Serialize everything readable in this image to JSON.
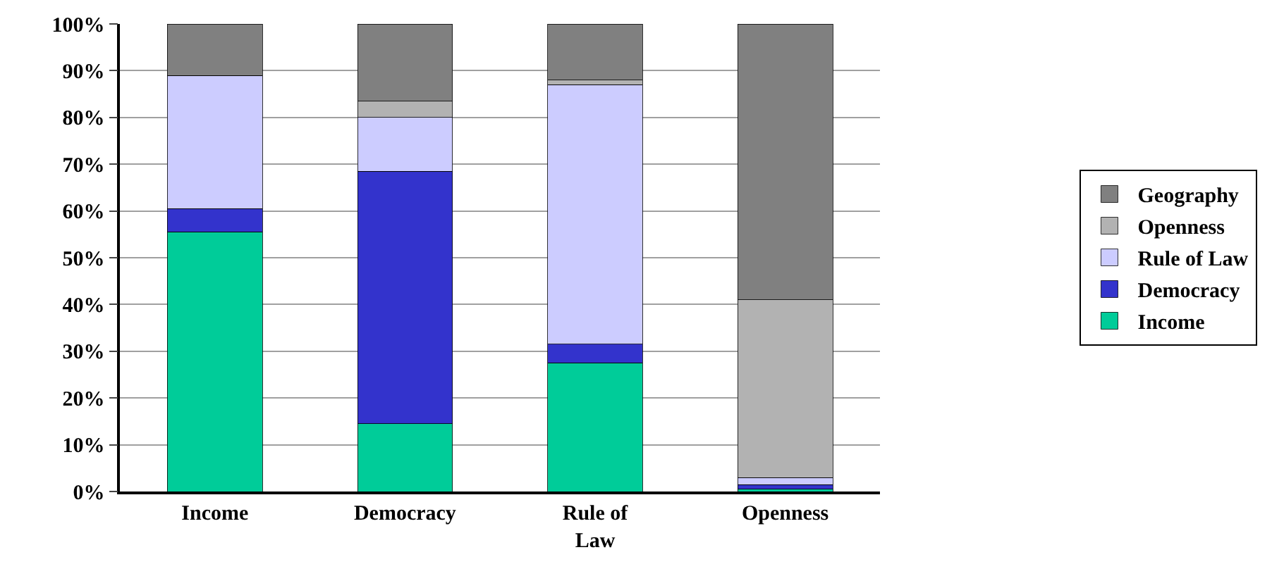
{
  "chart_data": {
    "type": "bar",
    "stacked": true,
    "categories": [
      "Income",
      "Democracy",
      "Rule of Law",
      "Openness"
    ],
    "series": [
      {
        "name": "Income",
        "color": "#00cc99",
        "values": [
          55.5,
          14.5,
          27.5,
          0.5
        ]
      },
      {
        "name": "Democracy",
        "color": "#3333cc",
        "values": [
          5,
          54,
          4,
          1
        ]
      },
      {
        "name": "Rule of Law",
        "color": "#ccccff",
        "values": [
          28.5,
          11.5,
          55.5,
          1.5
        ]
      },
      {
        "name": "Openness",
        "color": "#b2b2b2",
        "values": [
          0,
          3.5,
          1,
          38
        ]
      },
      {
        "name": "Geography",
        "color": "#808080",
        "values": [
          11,
          16.5,
          12,
          59
        ]
      }
    ],
    "ylim": [
      0,
      100
    ],
    "yticks": [
      {
        "value": 0,
        "label": "0%"
      },
      {
        "value": 10,
        "label": "10%"
      },
      {
        "value": 20,
        "label": "20%"
      },
      {
        "value": 30,
        "label": "30%"
      },
      {
        "value": 40,
        "label": "40%"
      },
      {
        "value": 50,
        "label": "50%"
      },
      {
        "value": 60,
        "label": "60%"
      },
      {
        "value": 70,
        "label": "70%"
      },
      {
        "value": 80,
        "label": "80%"
      },
      {
        "value": 90,
        "label": "90%"
      },
      {
        "value": 100,
        "label": "100%"
      }
    ],
    "grid": "y",
    "legend": "right"
  }
}
